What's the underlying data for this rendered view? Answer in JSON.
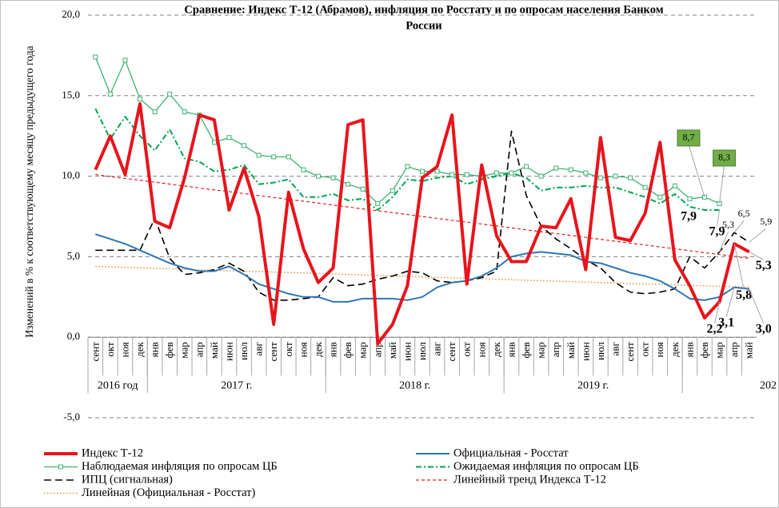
{
  "chart_data": {
    "type": "line",
    "title_lines": [
      "Сравнение: Индекс Т-12 (Абрамов), инфляция по Росстату и по опросам населения Банком",
      "России"
    ],
    "ylabel": "Изменений в % к соответствующему месяцу предыдущего года",
    "categories": [
      "сент",
      "окт",
      "ноя",
      "дек",
      "янв",
      "фев",
      "мар",
      "апр",
      "май",
      "июн",
      "июл",
      "авг",
      "сент",
      "окт",
      "ноя",
      "дек",
      "янв",
      "фев",
      "мар",
      "апр",
      "май",
      "июн",
      "июл",
      "авг",
      "сент",
      "окт",
      "ноя",
      "дек",
      "янв",
      "фев",
      "мар",
      "апр",
      "май",
      "июн",
      "июл",
      "авг",
      "сент",
      "окт",
      "ноя",
      "дек",
      "янв",
      "фев",
      "мар",
      "апр",
      "май"
    ],
    "x_groups": [
      {
        "label": "2016 год",
        "count": 4
      },
      {
        "label": "2017 г.",
        "count": 12
      },
      {
        "label": "2018 г.",
        "count": 12
      },
      {
        "label": "2019 г.",
        "count": 12
      },
      {
        "label": "202",
        "count": 5
      }
    ],
    "ylim": [
      -5,
      20
    ],
    "yticks": [
      {
        "value": -5,
        "label": "-5,0"
      },
      {
        "value": 0,
        "label": "0,0"
      },
      {
        "value": 5,
        "label": "5,0"
      },
      {
        "value": 10,
        "label": "10,0"
      },
      {
        "value": 15,
        "label": "15,0"
      },
      {
        "value": 20,
        "label": "20,0"
      }
    ],
    "grid": true,
    "series": [
      {
        "name": "Индекс Т-12",
        "color": "#e8141b",
        "width": 4,
        "values": [
          10.4,
          12.5,
          10.1,
          14.5,
          7.2,
          6.8,
          9.9,
          13.8,
          13.5,
          7.9,
          10.5,
          7.5,
          0.8,
          9.0,
          5.5,
          3.4,
          4.3,
          13.2,
          13.5,
          -0.4,
          0.8,
          3.2,
          9.9,
          10.6,
          13.8,
          3.3,
          10.7,
          6.3,
          4.7,
          4.7,
          6.9,
          6.8,
          8.6,
          4.2,
          12.4,
          6.2,
          6.0,
          7.7,
          12.1,
          4.8,
          3.2,
          1.2,
          2.2,
          5.8,
          5.3
        ],
        "value_labels": [
          null,
          null,
          null,
          null,
          null,
          null,
          null,
          null,
          null,
          null,
          null,
          null,
          null,
          null,
          null,
          null,
          null,
          null,
          null,
          null,
          null,
          null,
          null,
          null,
          null,
          null,
          null,
          null,
          null,
          null,
          null,
          null,
          null,
          null,
          null,
          null,
          null,
          null,
          null,
          null,
          null,
          null,
          "2,2",
          "5,8",
          "5,3"
        ]
      },
      {
        "name": "Официальная - Росстат",
        "color": "#2e75b6",
        "width": 2,
        "values": [
          6.4,
          6.1,
          5.8,
          5.4,
          5.0,
          4.6,
          4.3,
          4.1,
          4.1,
          4.4,
          3.9,
          3.3,
          3.0,
          2.7,
          2.5,
          2.5,
          2.2,
          2.2,
          2.4,
          2.4,
          2.4,
          2.3,
          2.5,
          3.1,
          3.4,
          3.5,
          3.8,
          4.3,
          5.0,
          5.2,
          5.3,
          5.2,
          5.1,
          4.7,
          4.6,
          4.3,
          4.0,
          3.8,
          3.5,
          3.0,
          2.4,
          2.3,
          2.5,
          3.1,
          3.0
        ],
        "value_labels": [
          null,
          null,
          null,
          null,
          null,
          null,
          null,
          null,
          null,
          null,
          null,
          null,
          null,
          null,
          null,
          null,
          null,
          null,
          null,
          null,
          null,
          null,
          null,
          null,
          null,
          null,
          null,
          null,
          null,
          null,
          null,
          null,
          null,
          null,
          null,
          null,
          null,
          null,
          null,
          null,
          null,
          null,
          null,
          "3,1",
          "3,0"
        ]
      },
      {
        "name": "Наблюдаемая  инфляция по опросам ЦБ",
        "color": "#3cb371",
        "width": 1.3,
        "marker": "square",
        "values": [
          17.4,
          15.1,
          17.2,
          14.8,
          14.0,
          15.1,
          14.0,
          13.8,
          12.1,
          12.4,
          11.9,
          11.3,
          11.2,
          11.2,
          10.4,
          10.0,
          9.9,
          9.5,
          9.2,
          8.3,
          9.1,
          10.6,
          10.3,
          10.3,
          10.1,
          10.1,
          10.0,
          10.2,
          10.2,
          10.6,
          10.0,
          10.5,
          10.4,
          10.2,
          9.9,
          10.0,
          9.9,
          9.3,
          8.7,
          9.4,
          8.6,
          8.7,
          8.3,
          null,
          null
        ],
        "value_labels": [
          null,
          null,
          null,
          null,
          null,
          null,
          null,
          null,
          null,
          null,
          null,
          null,
          null,
          null,
          null,
          null,
          null,
          null,
          null,
          null,
          null,
          null,
          null,
          null,
          null,
          null,
          null,
          null,
          null,
          null,
          null,
          null,
          null,
          null,
          null,
          null,
          null,
          null,
          null,
          null,
          null,
          "8,7",
          "8,3",
          null,
          null
        ]
      },
      {
        "name": "Ожидаемая  инфляция по опросам ЦБ",
        "color": "#00a550",
        "width": 2,
        "dash": "7,3,2,3",
        "values": [
          14.2,
          12.3,
          13.7,
          12.5,
          11.6,
          12.9,
          11.1,
          10.9,
          10.3,
          10.4,
          10.7,
          9.5,
          9.6,
          9.8,
          8.7,
          8.7,
          8.9,
          8.5,
          8.6,
          7.9,
          8.7,
          9.8,
          9.7,
          9.9,
          10.0,
          9.5,
          9.8,
          10.0,
          10.2,
          9.9,
          9.1,
          9.3,
          9.3,
          9.4,
          9.3,
          9.3,
          9.0,
          8.7,
          8.3,
          8.9,
          8.1,
          7.9,
          7.9,
          null,
          null
        ],
        "value_labels": [
          null,
          null,
          null,
          null,
          null,
          null,
          null,
          null,
          null,
          null,
          null,
          null,
          null,
          null,
          null,
          null,
          null,
          null,
          null,
          null,
          null,
          null,
          null,
          null,
          null,
          null,
          null,
          null,
          null,
          null,
          null,
          null,
          null,
          null,
          null,
          null,
          null,
          null,
          null,
          null,
          null,
          "7,9",
          "7,9",
          null,
          null
        ]
      },
      {
        "name": "ИПЦ (сигнальная)",
        "color": "#000000",
        "width": 1.6,
        "dash": "9,5",
        "values": [
          5.4,
          5.4,
          5.4,
          5.4,
          7.4,
          4.9,
          3.9,
          4.0,
          4.2,
          4.6,
          4.1,
          2.8,
          2.3,
          2.3,
          2.4,
          2.5,
          3.7,
          3.2,
          3.3,
          3.6,
          3.8,
          4.1,
          4.0,
          3.5,
          3.4,
          3.5,
          3.7,
          4.1,
          12.8,
          8.8,
          6.9,
          6.1,
          5.5,
          4.8,
          4.3,
          3.4,
          2.8,
          2.7,
          2.8,
          3.0,
          5.0,
          4.3,
          5.3,
          6.5,
          5.9
        ],
        "value_labels": [
          null,
          null,
          null,
          null,
          null,
          null,
          null,
          null,
          null,
          null,
          null,
          null,
          null,
          null,
          null,
          null,
          null,
          null,
          null,
          null,
          null,
          null,
          null,
          null,
          null,
          null,
          null,
          null,
          null,
          null,
          null,
          null,
          null,
          null,
          null,
          null,
          null,
          null,
          null,
          null,
          null,
          null,
          "5,3",
          "6,5",
          "5,9"
        ]
      },
      {
        "name": "Линейный тренд Индекса Т-12",
        "color": "#e02020",
        "width": 1.2,
        "dash": "4,3",
        "values": [
          10.1,
          9.98,
          9.86,
          9.75,
          9.63,
          9.51,
          9.39,
          9.27,
          9.15,
          9.04,
          8.92,
          8.8,
          8.68,
          8.56,
          8.45,
          8.33,
          8.21,
          8.09,
          7.97,
          7.85,
          7.74,
          7.62,
          7.5,
          7.38,
          7.26,
          7.15,
          7.03,
          6.91,
          6.79,
          6.67,
          6.55,
          6.44,
          6.32,
          6.2,
          6.08,
          5.96,
          5.84,
          5.73,
          5.61,
          5.49,
          5.37,
          5.25,
          5.14,
          5.02,
          4.9
        ]
      },
      {
        "name": "Линейная (Официальная - Росстат)",
        "color": "#e69138",
        "width": 1.5,
        "dash": "1.5,2.5",
        "values": [
          4.4,
          4.37,
          4.34,
          4.31,
          4.28,
          4.25,
          4.22,
          4.19,
          4.16,
          4.13,
          4.1,
          4.07,
          4.05,
          4.02,
          3.99,
          3.96,
          3.93,
          3.9,
          3.87,
          3.84,
          3.81,
          3.78,
          3.75,
          3.72,
          3.69,
          3.66,
          3.63,
          3.6,
          3.57,
          3.54,
          3.51,
          3.48,
          3.45,
          3.42,
          3.39,
          3.37,
          3.34,
          3.31,
          3.28,
          3.25,
          3.22,
          3.19,
          3.16,
          3.13,
          3.1
        ]
      }
    ]
  }
}
